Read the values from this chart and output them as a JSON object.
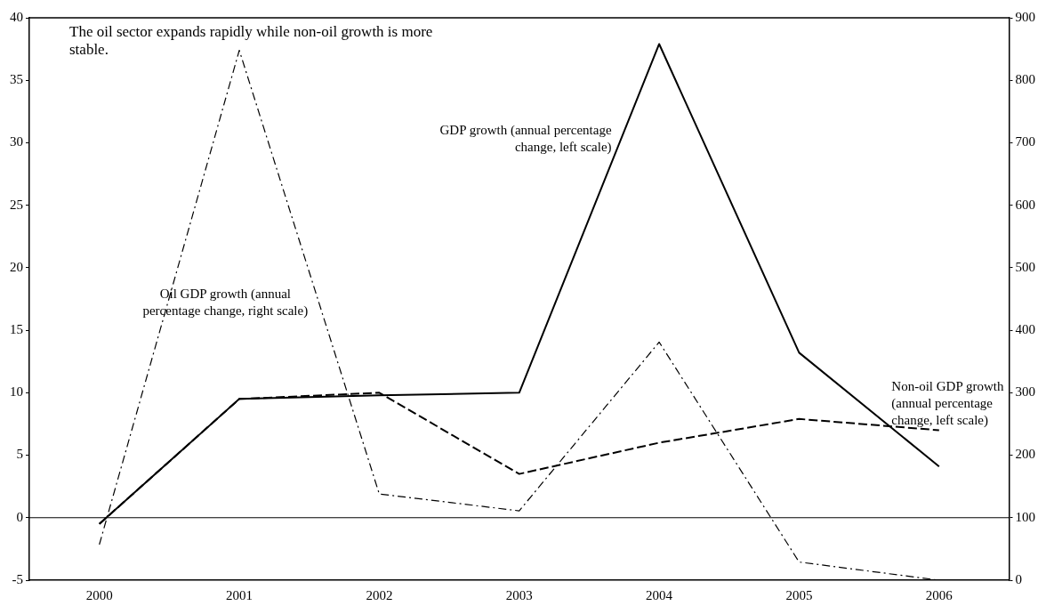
{
  "chart_data": {
    "type": "line",
    "categories": [
      "2000",
      "2001",
      "2002",
      "2003",
      "2004",
      "2005",
      "2006"
    ],
    "series": [
      {
        "name": "GDP growth (annual percentage change, left scale)",
        "color": "#000000",
        "line_style": "solid",
        "values": [
          -0.5,
          9.5,
          9.8,
          10,
          37.9,
          13.2,
          4.1
        ]
      },
      {
        "name": "Non-oil GDP growth (annual percentage change, left scale)",
        "color": "#000000",
        "line_style": "dashed",
        "values": [
          -0.5,
          9.5,
          10,
          3.5,
          6,
          7.9,
          7
        ]
      },
      {
        "name": "Oil GDP growth (annual percentage change, right scale)",
        "color": "#000000",
        "line_style": "dotted",
        "axis": "y2",
        "values": [
          57,
          848,
          138,
          111,
          381,
          29,
          0
        ]
      }
    ],
    "ylim": [
      -5,
      40
    ],
    "yticks": [
      -5,
      0,
      5,
      10,
      15,
      20,
      25,
      30,
      35,
      40
    ],
    "y2lim": [
      0,
      900
    ],
    "y2ticks": [
      0,
      100,
      200,
      300,
      400,
      500,
      600,
      700,
      800,
      900
    ],
    "ref_lines": [
      {
        "axis": "y",
        "value": 0,
        "color": "#000000"
      }
    ],
    "annotations": [
      "The oil sector expands rapidly while non-oil growth is more stable."
    ],
    "grid": false,
    "legend": false,
    "marker": "none"
  }
}
